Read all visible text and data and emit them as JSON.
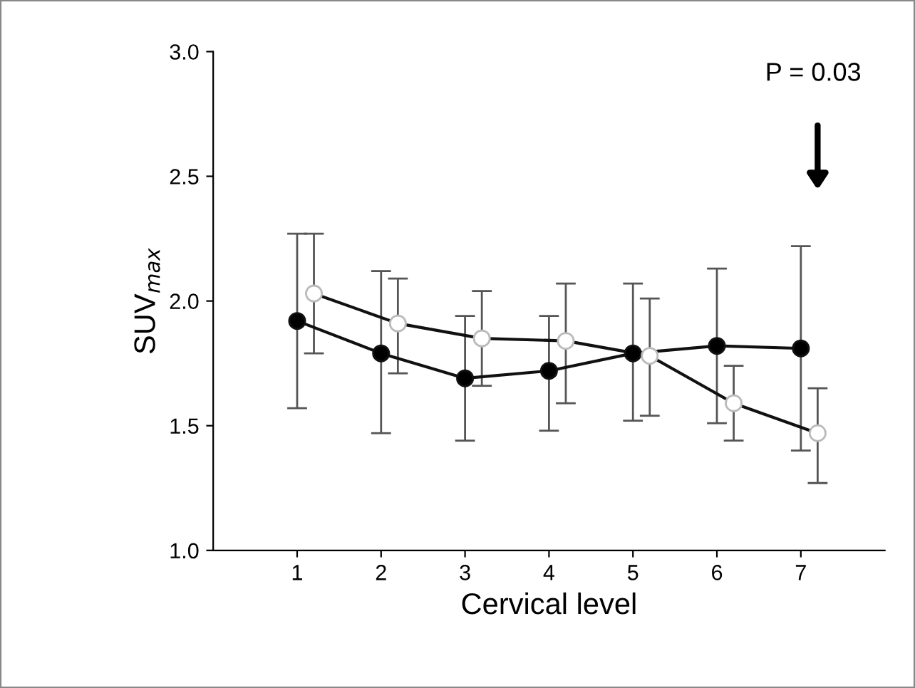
{
  "chart_data": {
    "type": "line",
    "xlabel": "Cervical level",
    "ylabel": "SUV$_{max}$",
    "xlim": [
      0,
      8
    ],
    "xticks": [
      1,
      2,
      3,
      4,
      5,
      6,
      7
    ],
    "ylim": [
      1.0,
      3.0
    ],
    "yticks": [
      {
        "value": 1.0,
        "label": "1.0"
      },
      {
        "value": 1.5,
        "label": "1.5"
      },
      {
        "value": 2.0,
        "label": "2.0"
      },
      {
        "value": 2.5,
        "label": "2.5"
      },
      {
        "value": 3.0,
        "label": "3.0"
      }
    ],
    "marker": "circle",
    "grid": false,
    "legend": false,
    "series": [
      {
        "color": "#000000",
        "x": [
          1,
          2,
          3,
          4,
          5,
          6,
          7
        ],
        "values": [
          1.92,
          1.79,
          1.69,
          1.72,
          1.79,
          1.82,
          1.81
        ],
        "errors": [
          [
            1.57,
            2.27
          ],
          [
            1.47,
            2.12
          ],
          [
            1.44,
            1.94
          ],
          [
            1.48,
            1.94
          ],
          [
            1.52,
            2.07
          ],
          [
            1.51,
            2.13
          ],
          [
            1.4,
            2.22
          ]
        ]
      },
      {
        "color": "#ffffff",
        "x": [
          1.2,
          2.2,
          3.2,
          4.2,
          5.2,
          6.2,
          7.2
        ],
        "values": [
          2.03,
          1.91,
          1.85,
          1.84,
          1.78,
          1.59,
          1.47
        ],
        "errors": [
          [
            1.79,
            2.27
          ],
          [
            1.71,
            2.09
          ],
          [
            1.66,
            2.04
          ],
          [
            1.59,
            2.07
          ],
          [
            1.54,
            2.01
          ],
          [
            1.44,
            1.74
          ],
          [
            1.27,
            1.65
          ]
        ]
      }
    ],
    "annotations": [
      "P = 0.03"
    ]
  }
}
